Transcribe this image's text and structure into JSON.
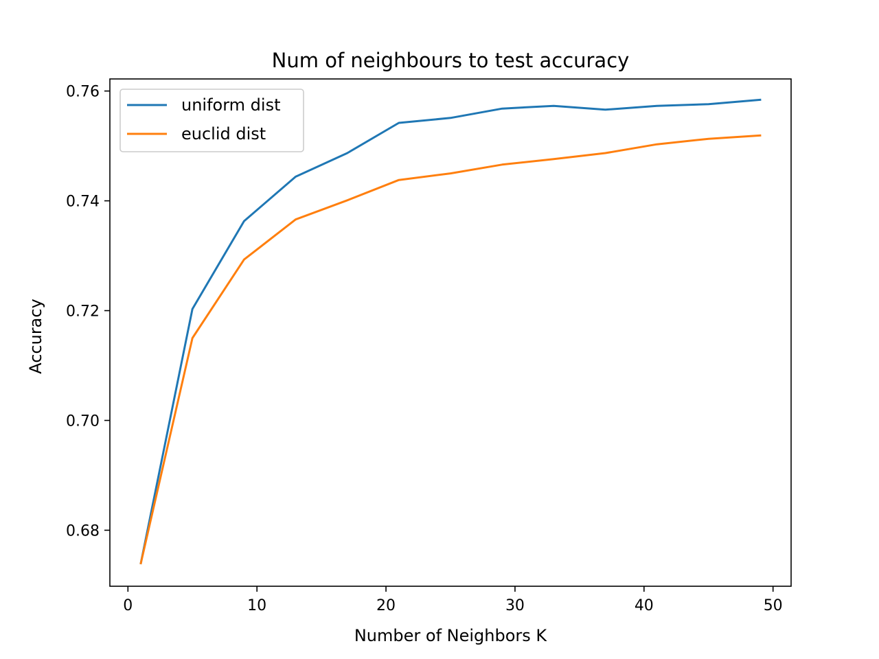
{
  "chart_data": {
    "type": "line",
    "title": "Num of neighbours to test accuracy",
    "xlabel": "Number of Neighbors K",
    "ylabel": "Accuracy",
    "xlim": [
      -1.4,
      51.4
    ],
    "ylim": [
      0.6698,
      0.7622
    ],
    "xticks": [
      0,
      10,
      20,
      30,
      40,
      50
    ],
    "yticks": [
      0.68,
      0.7,
      0.72,
      0.74,
      0.76
    ],
    "x": [
      1,
      5,
      9,
      13,
      17,
      21,
      25,
      29,
      33,
      37,
      41,
      45,
      49
    ],
    "series": [
      {
        "name": "uniform dist",
        "color": "#1f77b4",
        "values": [
          0.674,
          0.7203,
          0.7363,
          0.7444,
          0.7487,
          0.7542,
          0.7551,
          0.7568,
          0.7573,
          0.7566,
          0.7573,
          0.7576,
          0.7584
        ]
      },
      {
        "name": "euclid dist",
        "color": "#ff7f0e",
        "values": [
          0.674,
          0.715,
          0.7293,
          0.7366,
          0.7401,
          0.7438,
          0.745,
          0.7466,
          0.7476,
          0.7487,
          0.7503,
          0.7513,
          0.7519
        ]
      }
    ],
    "grid": false,
    "legend_position": "upper-left"
  }
}
